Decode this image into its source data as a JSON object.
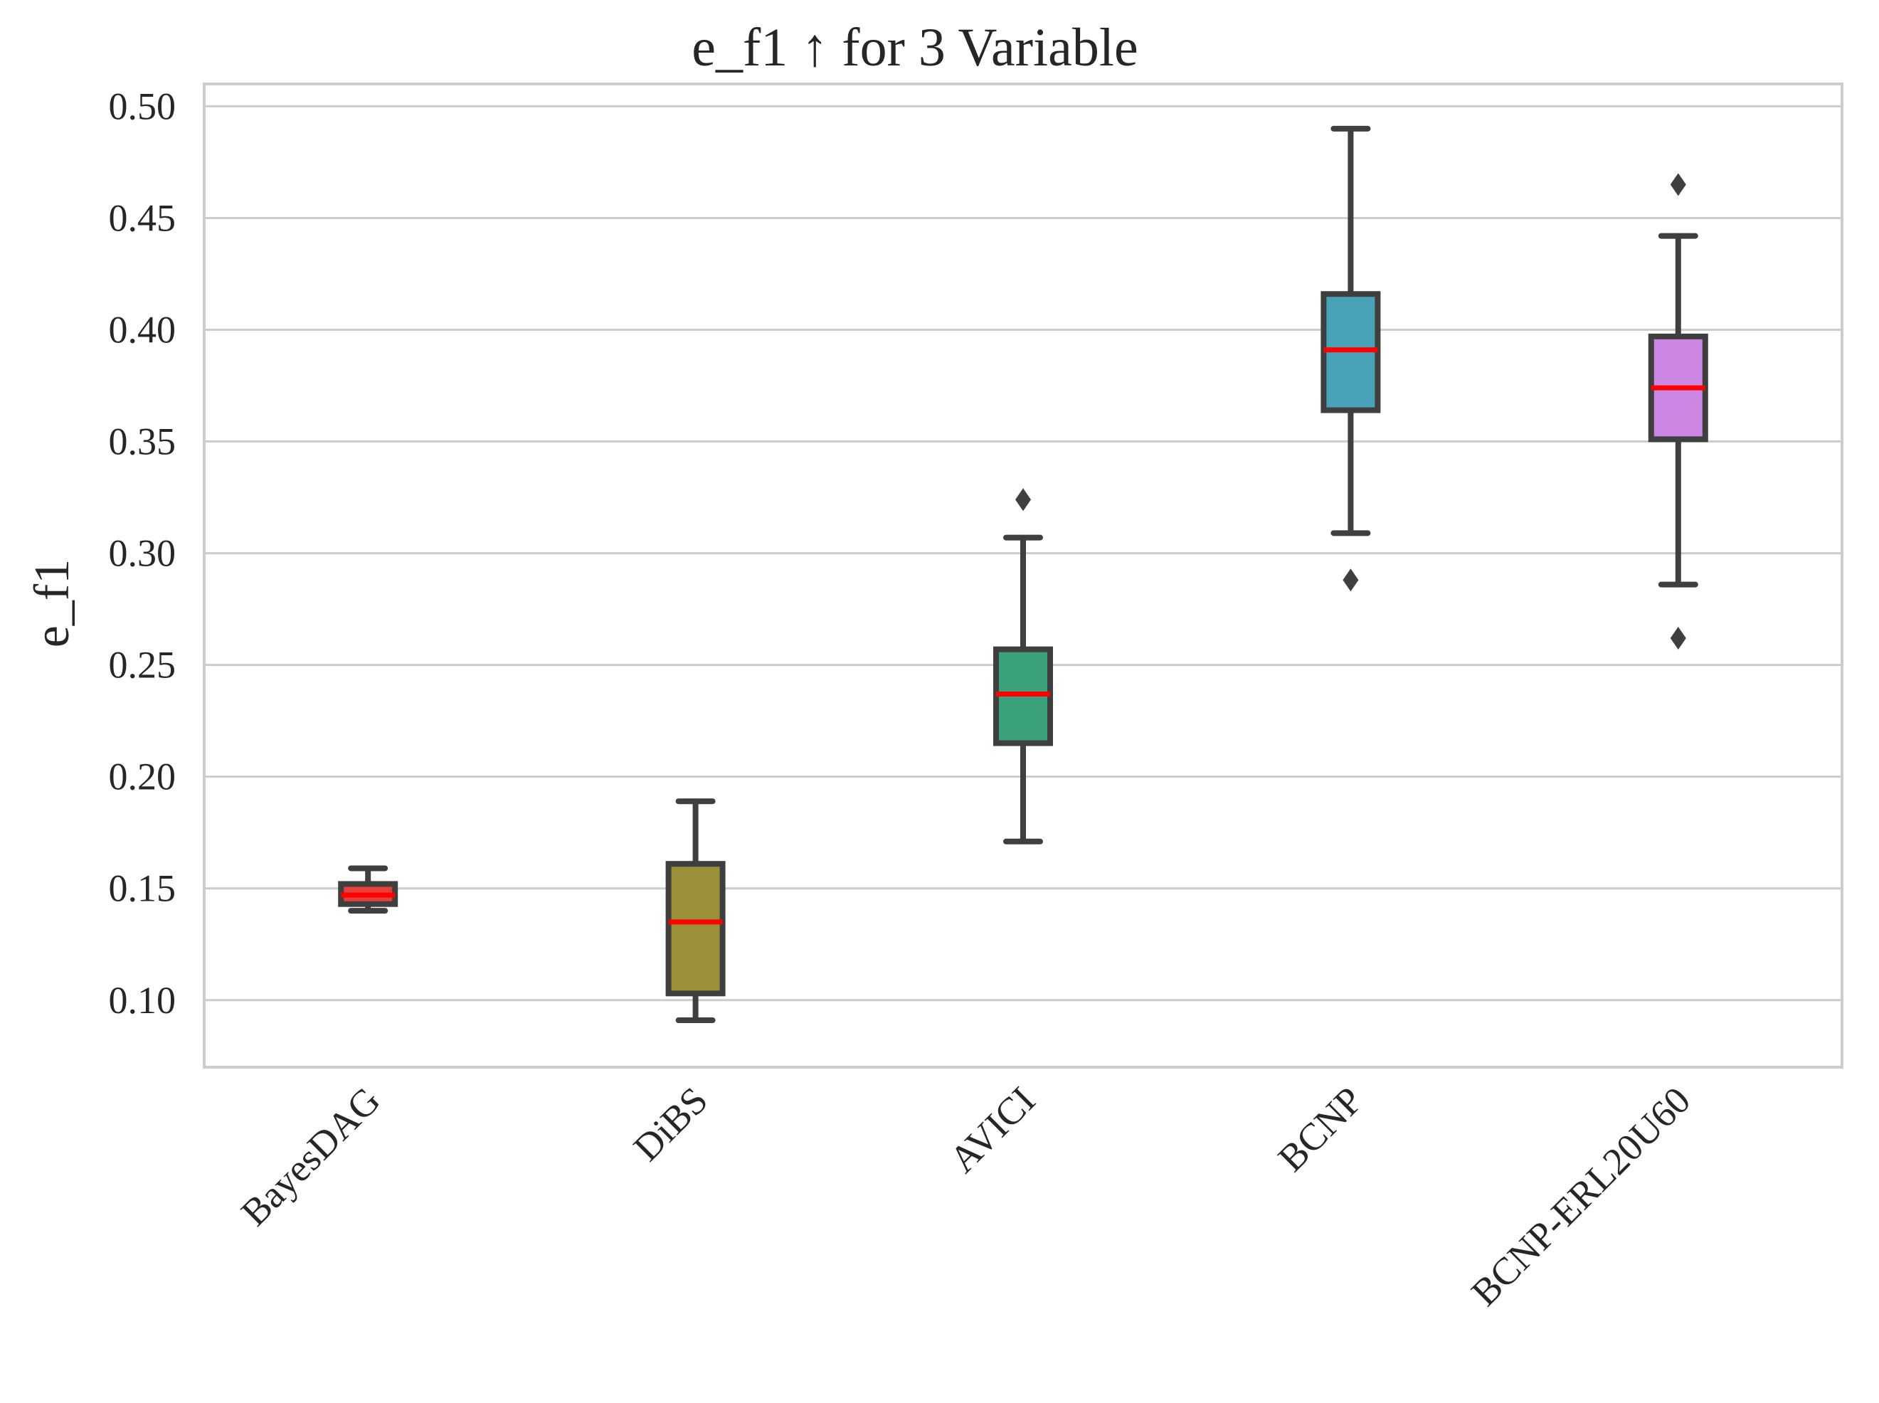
{
  "chart_data": {
    "type": "box",
    "title": "e_f1 ↑ for 3 Variable",
    "xlabel": "",
    "ylabel": "e_f1",
    "ylim": [
      0.07,
      0.51
    ],
    "yticks": [
      "0.10",
      "0.15",
      "0.20",
      "0.25",
      "0.30",
      "0.35",
      "0.40",
      "0.45",
      "0.50"
    ],
    "grid": true,
    "categories": [
      "BayesDAG",
      "DiBS",
      "AVICI",
      "BCNP",
      "BCNP-ERL20U60"
    ],
    "boxes": [
      {
        "name": "BayesDAG",
        "whisker_low": 0.14,
        "q1": 0.143,
        "median": 0.147,
        "q3": 0.152,
        "whisker_high": 0.159,
        "outliers": [],
        "color": "#e8403a"
      },
      {
        "name": "DiBS",
        "whisker_low": 0.091,
        "q1": 0.103,
        "median": 0.135,
        "q3": 0.161,
        "whisker_high": 0.189,
        "outliers": [],
        "color": "#9b8f3a"
      },
      {
        "name": "AVICI",
        "whisker_low": 0.171,
        "q1": 0.215,
        "median": 0.237,
        "q3": 0.257,
        "whisker_high": 0.307,
        "outliers": [
          0.324
        ],
        "color": "#3aa17a"
      },
      {
        "name": "BCNP",
        "whisker_low": 0.309,
        "q1": 0.364,
        "median": 0.391,
        "q3": 0.416,
        "whisker_high": 0.49,
        "outliers": [
          0.288
        ],
        "color": "#48a2b8"
      },
      {
        "name": "BCNP-ERL20U60",
        "whisker_low": 0.286,
        "q1": 0.351,
        "median": 0.374,
        "q3": 0.397,
        "whisker_high": 0.442,
        "outliers": [
          0.465,
          0.262
        ],
        "color": "#cb87e3"
      }
    ]
  }
}
